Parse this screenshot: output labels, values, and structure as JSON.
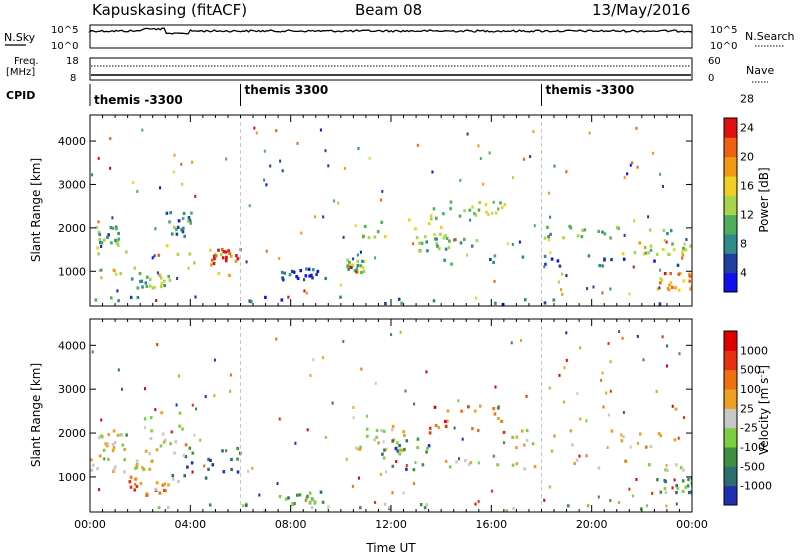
{
  "header": {
    "station": "Kapuskasing (fitACF)",
    "beam": "Beam 08",
    "date": "13/May/2016"
  },
  "noise_panel": {
    "left_label": "N.Sky",
    "left_ticks": [
      "10^5",
      "10^0"
    ],
    "right_label": "N.Search",
    "right_ticks": [
      "10^5",
      "10^0"
    ]
  },
  "freq_panel": {
    "left_label": "Freq.",
    "left_unit": "[MHz]",
    "left_ticks": [
      "18",
      "8"
    ],
    "right_label": "Nave",
    "right_ticks": [
      "60",
      "0"
    ]
  },
  "cpid_panel": {
    "label": "CPID",
    "segments": [
      {
        "label": "themis -3300",
        "start_hour": 0
      },
      {
        "label": "themis 3300",
        "start_hour": 6
      },
      {
        "label": "themis -3300",
        "start_hour": 18
      }
    ]
  },
  "chart_data": [
    {
      "type": "heatmap",
      "name": "power",
      "ylabel": "Slant Range [km]",
      "ylim": [
        200,
        4600
      ],
      "yticks": [
        "1000",
        "2000",
        "3000",
        "4000"
      ],
      "xlim": [
        0,
        24
      ],
      "colorbar_label": "Power [dB]",
      "colorbar_ticks": [
        "4",
        "8",
        "12",
        "16",
        "20",
        "24",
        "28"
      ],
      "colors": [
        "#1010ee",
        "#1f3fa0",
        "#2e8b8b",
        "#4fae5a",
        "#a8d64a",
        "#f0d020",
        "#f29a12",
        "#f06010",
        "#e01010"
      ],
      "regions": [
        {
          "t": [
            0.1,
            6.0
          ],
          "r": [
            900,
            1700
          ],
          "level": 0.62
        },
        {
          "t": [
            4.8,
            6.0
          ],
          "r": [
            1200,
            1550
          ],
          "level": 0.93
        },
        {
          "t": [
            1.6,
            3.2
          ],
          "r": [
            650,
            1000
          ],
          "level": 0.42
        },
        {
          "t": [
            0.2,
            1.2
          ],
          "r": [
            1600,
            2100
          ],
          "level": 0.35
        },
        {
          "t": [
            3.0,
            4.0
          ],
          "r": [
            1700,
            2400
          ],
          "level": 0.28
        },
        {
          "t": [
            7.5,
            9.5
          ],
          "r": [
            800,
            1100
          ],
          "level": 0.12
        },
        {
          "t": [
            10.2,
            11.0
          ],
          "r": [
            1000,
            1300
          ],
          "level": 0.45
        },
        {
          "t": [
            10.8,
            14.5
          ],
          "r": [
            1800,
            2300
          ],
          "level": 0.52
        },
        {
          "t": [
            12.5,
            15.5
          ],
          "r": [
            1450,
            1800
          ],
          "level": 0.4
        },
        {
          "t": [
            13.5,
            16.5
          ],
          "r": [
            2300,
            2650
          ],
          "level": 0.5
        },
        {
          "t": [
            14.0,
            24.0
          ],
          "r": [
            1150,
            1400
          ],
          "level": 0.18
        },
        {
          "t": [
            16.5,
            23.5
          ],
          "r": [
            1800,
            2100
          ],
          "level": 0.38
        },
        {
          "t": [
            21.0,
            24.0
          ],
          "r": [
            1400,
            1700
          ],
          "level": 0.55
        },
        {
          "t": [
            22.5,
            24.0
          ],
          "r": [
            600,
            1000
          ],
          "level": 0.75
        },
        {
          "t": [
            0.0,
            24.0
          ],
          "r": [
            250,
            450
          ],
          "level": 0.2
        }
      ]
    },
    {
      "type": "heatmap",
      "name": "velocity",
      "ylabel": "Slant Range [km]",
      "ylim": [
        200,
        4600
      ],
      "yticks": [
        "1000",
        "2000",
        "3000",
        "4000"
      ],
      "xlim": [
        0,
        24
      ],
      "xticks": [
        "00:00",
        "04:00",
        "08:00",
        "12:00",
        "16:00",
        "20:00",
        "00:00"
      ],
      "xlabel": "Time UT",
      "colorbar_label": "Velocity [m s",
      "colorbar_label_sup": "-1",
      "colorbar_label_end": "]",
      "colorbar_ticks": [
        "1000",
        "500",
        "100",
        "25",
        "-25",
        "-100",
        "-500",
        "-1000"
      ],
      "colors": [
        "#1f2fb0",
        "#2a6e6e",
        "#3f8f3f",
        "#7cd040",
        "#c8c8c8",
        "#f0a020",
        "#f07010",
        "#e83010",
        "#e00000"
      ],
      "regions": [
        {
          "t": [
            0.0,
            2.5
          ],
          "r": [
            1150,
            1450
          ],
          "level": 0.5
        },
        {
          "t": [
            1.5,
            3.5
          ],
          "r": [
            600,
            1050
          ],
          "level": 0.7
        },
        {
          "t": [
            3.2,
            6.0
          ],
          "r": [
            1000,
            1750
          ],
          "level": 0.15
        },
        {
          "t": [
            0.3,
            1.5
          ],
          "r": [
            1500,
            2100
          ],
          "level": 0.5
        },
        {
          "t": [
            2.0,
            3.8
          ],
          "r": [
            1500,
            2500
          ],
          "level": 0.5
        },
        {
          "t": [
            7.5,
            9.5
          ],
          "r": [
            400,
            700
          ],
          "level": 0.3
        },
        {
          "t": [
            10.5,
            12.5
          ],
          "r": [
            1600,
            2200
          ],
          "level": 0.5
        },
        {
          "t": [
            11.5,
            13.5
          ],
          "r": [
            1200,
            1900
          ],
          "level": 0.25
        },
        {
          "t": [
            13.5,
            16.5
          ],
          "r": [
            2000,
            2650
          ],
          "level": 0.78
        },
        {
          "t": [
            14.0,
            24.0
          ],
          "r": [
            1150,
            1450
          ],
          "level": 0.5
        },
        {
          "t": [
            16.5,
            23.5
          ],
          "r": [
            1700,
            2100
          ],
          "level": 0.5
        },
        {
          "t": [
            22.5,
            24.0
          ],
          "r": [
            650,
            1000
          ],
          "level": 0.3
        },
        {
          "t": [
            0.0,
            24.0
          ],
          "r": [
            250,
            420
          ],
          "level": 0.35
        }
      ]
    }
  ]
}
